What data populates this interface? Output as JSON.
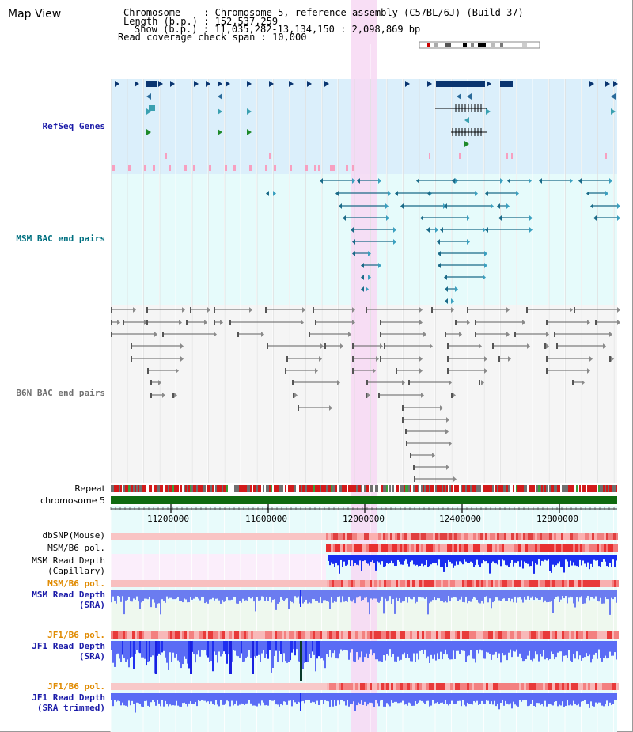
{
  "map_title": "Map View",
  "header": {
    "chromosome_label": "Chromosome",
    "chromosome_value": "Chromosome 5, reference assembly (C57BL/6J) (Build 37)",
    "length_label": "Length (b.p.)",
    "length_value": "152,537,259",
    "show_label": "Show (b.p.)",
    "show_value": "11,035,282-13,134,150 : 2,098,869 bp",
    "coverage_label": "Read coverage check span",
    "coverage_value": "10,000"
  },
  "tracks": {
    "refseq": "RefSeq Genes",
    "msm_bac": "MSM BAC end pairs",
    "b6n_bac": "B6N BAC end pairs",
    "repeat": "Repeat",
    "chromosome": "chromosome 5",
    "dbsnp": "dbSNP(Mouse)",
    "msm_b6_pol_1": "MSM/B6 pol.",
    "msm_depth_cap_1": "MSM Read Depth",
    "msm_depth_cap_2": "(Capillary)",
    "msm_b6_pol_2": "MSM/B6 pol.",
    "msm_depth_sra_1": "MSM Read Depth",
    "msm_depth_sra_2": "(SRA)",
    "jf1_b6_pol_1": "JF1/B6 pol.",
    "jf1_depth_sra_1": "JF1 Read Depth",
    "jf1_depth_sra_2": "(SRA)",
    "jf1_b6_pol_2": "JF1/B6 pol.",
    "jf1_depth_trim_1": "JF1 Read Depth",
    "jf1_depth_trim_2": "(SRA trimmed)"
  },
  "axis": {
    "ticks": [
      "11200000",
      "11600000",
      "12000000",
      "12400000",
      "12800000"
    ]
  },
  "colors": {
    "refseq_bg": "#dbeffb",
    "msm_bg": "#e6fbfb",
    "b6n_bg": "#f5f5f5",
    "highlight": "#f7d8f3",
    "refseq_label": "#1a1aa8",
    "msm_label": "#007080",
    "b6n_label": "#707070",
    "pol_label": "#e08a00",
    "depth_label": "#1a1aa8"
  }
}
